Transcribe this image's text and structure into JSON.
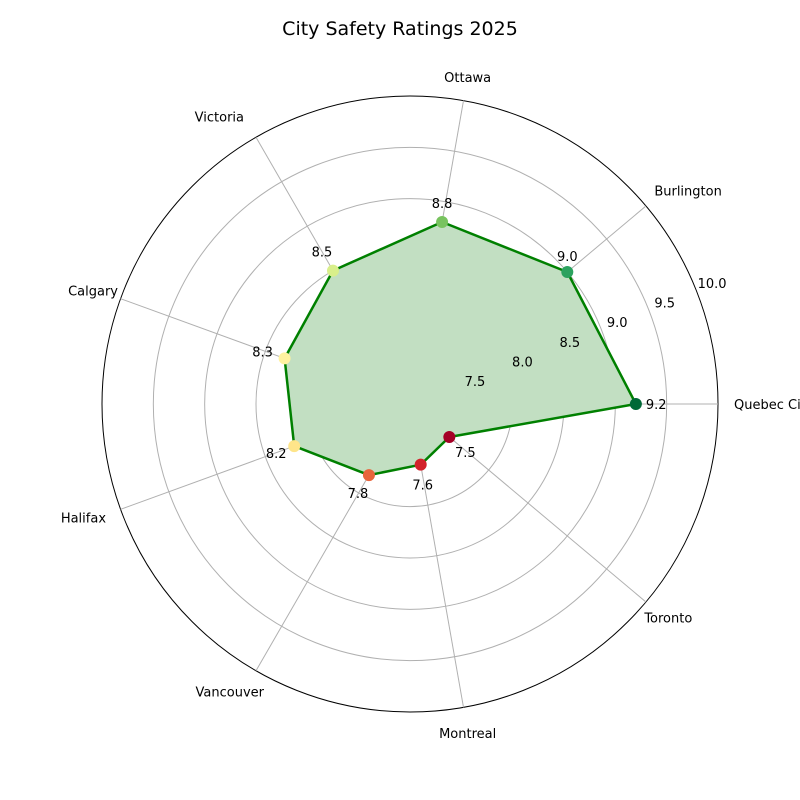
{
  "chart_data": {
    "type": "radar",
    "title": "City Safety Ratings 2025",
    "categories": [
      "Quebec City",
      "Burlington",
      "Ottawa",
      "Victoria",
      "Calgary",
      "Halifax",
      "Vancouver",
      "Montreal",
      "Toronto"
    ],
    "values": [
      9.2,
      9.0,
      8.8,
      8.5,
      8.3,
      8.2,
      7.8,
      7.6,
      7.5
    ],
    "value_labels": [
      "9.2",
      "9.0",
      "8.8",
      "8.5",
      "8.3",
      "8.2",
      "7.8",
      "7.6",
      "7.5"
    ],
    "r_range": [
      7.0,
      10.0
    ],
    "r_ticks": [
      7.5,
      8.0,
      8.5,
      9.0,
      9.5,
      10.0
    ],
    "r_tick_labels": [
      "7.5",
      "8.0",
      "8.5",
      "9.0",
      "9.5",
      "10.0"
    ],
    "grid": true,
    "line_color": "#008000",
    "fill_color": "#c2dfc2",
    "marker_colors": [
      "#006837",
      "#2ca25f",
      "#78c35f",
      "#d9ef8b",
      "#fff2a0",
      "#fee58a",
      "#e8643c",
      "#d2222a",
      "#a50026"
    ]
  }
}
